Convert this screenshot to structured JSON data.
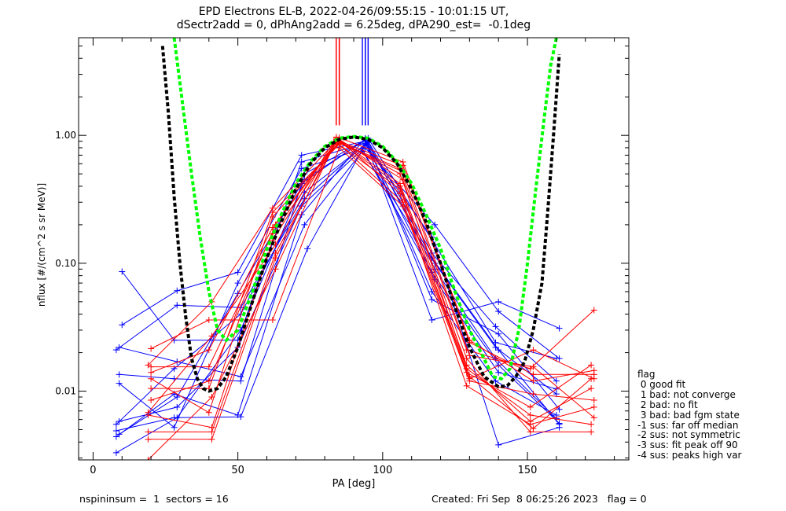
{
  "title": {
    "line1": "EPD Electrons EL-B, 2022-04-26/09:55:15 - 10:01:15 UT,",
    "line2": "dSectr2add = 0, dPhAng2add = 6.25deg, dPA290_est=  -0.1deg"
  },
  "footer": {
    "left": "nspininsum =  1  sectors = 16",
    "right": "Created: Fri Sep  8 06:25:26 2023   flag = 0"
  },
  "legend": {
    "title": "flag",
    "items": [
      " 0 good fit",
      " 1 bad: not converge",
      " 2 bad: no fit",
      " 3 bad: bad fgm state",
      "-1 sus: far off median",
      "-2 sus: not symmetric",
      "-3 sus: fit peak off 90",
      "-4 sus: peaks high var"
    ]
  },
  "colors": {
    "sector_blue": "#0000ff",
    "sector_red": "#ff0000",
    "fit_green": "#00ff00",
    "fit_black": "#000000"
  },
  "chart_data": {
    "type": "line",
    "xlabel": "PA [deg]",
    "ylabel": "nflux [#/(cm^2 s sr MeV)]",
    "xlim": [
      -5,
      185
    ],
    "ylim": [
      0.0029,
      5.8
    ],
    "ylog": true,
    "xticks": [
      0,
      50,
      100,
      150
    ],
    "yticks": [
      {
        "value": 0.01,
        "label": "0.01"
      },
      {
        "value": 0.1,
        "label": "0.10"
      },
      {
        "value": 1.0,
        "label": "1.00"
      }
    ],
    "series": [
      {
        "color": "blue",
        "pa": [
          9,
          29,
          50,
          72,
          94,
          117,
          140,
          161
        ],
        "flux": [
          0.0046,
          0.009,
          0.058,
          0.42,
          0.93,
          0.11,
          0.021,
          0.0055
        ]
      },
      {
        "color": "blue",
        "pa": [
          8,
          28,
          51,
          73,
          95,
          118,
          139,
          160
        ],
        "flux": [
          0.0055,
          0.015,
          0.04,
          0.36,
          0.88,
          0.09,
          0.018,
          0.0061
        ]
      },
      {
        "color": "blue",
        "pa": [
          10,
          29,
          50,
          72,
          94,
          117,
          140,
          161
        ],
        "flux": [
          0.033,
          0.061,
          0.085,
          0.7,
          0.9,
          0.036,
          0.05,
          0.031
        ]
      },
      {
        "color": "blue",
        "pa": [
          9,
          28,
          51,
          73,
          95,
          118,
          139,
          160
        ],
        "flux": [
          0.0135,
          0.0125,
          0.012,
          0.5,
          0.95,
          0.14,
          0.024,
          0.018
        ]
      },
      {
        "color": "blue",
        "pa": [
          8,
          28,
          51,
          74,
          94,
          117,
          140,
          161
        ],
        "flux": [
          0.0049,
          0.0062,
          0.0063,
          0.13,
          0.85,
          0.16,
          0.0038,
          0.0052
        ]
      },
      {
        "color": "blue",
        "pa": [
          9,
          29,
          50,
          72,
          93,
          118,
          140,
          160
        ],
        "flux": [
          0.0058,
          0.0075,
          0.022,
          0.28,
          0.78,
          0.075,
          0.014,
          0.0104
        ]
      },
      {
        "color": "blue",
        "pa": [
          8,
          29,
          51,
          73,
          94,
          117,
          139,
          160
        ],
        "flux": [
          0.0033,
          0.0062,
          0.03,
          0.45,
          0.92,
          0.06,
          0.012,
          0.0065
        ]
      },
      {
        "color": "blue",
        "pa": [
          9,
          28,
          50,
          72,
          94,
          118,
          140,
          161
        ],
        "flux": [
          0.0115,
          0.0052,
          0.07,
          0.55,
          0.8,
          0.2,
          0.042,
          0.018
        ]
      },
      {
        "color": "blue",
        "pa": [
          8,
          29,
          51,
          73,
          95,
          117,
          139,
          160
        ],
        "flux": [
          0.021,
          0.047,
          0.045,
          0.32,
          0.9,
          0.12,
          0.032,
          0.012
        ]
      },
      {
        "color": "blue",
        "pa": [
          10,
          28,
          50,
          72,
          94,
          117,
          140,
          161
        ],
        "flux": [
          0.086,
          0.025,
          0.025,
          0.62,
          0.87,
          0.085,
          0.016,
          0.0056
        ]
      },
      {
        "color": "blue",
        "pa": [
          9,
          29,
          51,
          73,
          93,
          118,
          139,
          160
        ],
        "flux": [
          0.022,
          0.017,
          0.013,
          0.2,
          0.75,
          0.1,
          0.022,
          0.0095
        ]
      },
      {
        "color": "blue",
        "pa": [
          8,
          28,
          50,
          72,
          94,
          117,
          140,
          161
        ],
        "flux": [
          0.0044,
          0.0095,
          0.0065,
          0.24,
          0.95,
          0.052,
          0.028,
          0.0072
        ]
      },
      {
        "color": "red",
        "pa": [
          19,
          41,
          62,
          84,
          106,
          129,
          151,
          173
        ],
        "flux": [
          0.0065,
          0.0052,
          0.15,
          0.97,
          0.35,
          0.011,
          0.0055,
          0.0075
        ]
      },
      {
        "color": "red",
        "pa": [
          20,
          40,
          63,
          85,
          107,
          130,
          152,
          172
        ],
        "flux": [
          0.0085,
          0.012,
          0.2,
          0.93,
          0.45,
          0.013,
          0.0051,
          0.0125
        ]
      },
      {
        "color": "red",
        "pa": [
          19,
          41,
          62,
          84,
          106,
          129,
          151,
          173
        ],
        "flux": [
          0.016,
          0.05,
          0.27,
          0.9,
          0.55,
          0.021,
          0.015,
          0.043
        ]
      },
      {
        "color": "red",
        "pa": [
          20,
          40,
          62,
          85,
          107,
          130,
          152,
          173
        ],
        "flux": [
          0.014,
          0.021,
          0.19,
          0.96,
          0.62,
          0.025,
          0.012,
          0.0145
        ]
      },
      {
        "color": "red",
        "pa": [
          19,
          41,
          63,
          84,
          106,
          129,
          151,
          172
        ],
        "flux": [
          0.0048,
          0.0048,
          0.12,
          0.88,
          0.38,
          0.015,
          0.0065,
          0.0055
        ]
      },
      {
        "color": "red",
        "pa": [
          20,
          40,
          62,
          85,
          107,
          130,
          152,
          173
        ],
        "flux": [
          0.0215,
          0.036,
          0.036,
          0.8,
          0.28,
          0.012,
          0.0095,
          0.0085
        ]
      },
      {
        "color": "red",
        "pa": [
          19,
          41,
          63,
          84,
          106,
          129,
          151,
          172
        ],
        "flux": [
          0.0029,
          0.009,
          0.09,
          0.92,
          0.5,
          0.018,
          0.0048,
          0.0048
        ]
      },
      {
        "color": "red",
        "pa": [
          20,
          40,
          62,
          85,
          107,
          130,
          152,
          173
        ],
        "flux": [
          0.0105,
          0.0105,
          0.25,
          0.85,
          0.3,
          0.0125,
          0.021,
          0.0125
        ]
      },
      {
        "color": "red",
        "pa": [
          19,
          41,
          63,
          84,
          106,
          129,
          151,
          172
        ],
        "flux": [
          0.0042,
          0.0042,
          0.11,
          0.95,
          0.42,
          0.016,
          0.0058,
          0.0105
        ]
      },
      {
        "color": "red",
        "pa": [
          20,
          40,
          62,
          85,
          107,
          130,
          152,
          173
        ],
        "flux": [
          0.0155,
          0.0155,
          0.17,
          0.9,
          0.58,
          0.024,
          0.0135,
          0.0135
        ]
      },
      {
        "color": "red",
        "pa": [
          19,
          41,
          63,
          84,
          106,
          129,
          151,
          172
        ],
        "flux": [
          0.0068,
          0.027,
          0.14,
          0.93,
          0.4,
          0.014,
          0.0075,
          0.016
        ]
      },
      {
        "color": "red",
        "pa": [
          20,
          40,
          62,
          85,
          107,
          130,
          152,
          173
        ],
        "flux": [
          0.0125,
          0.0068,
          0.23,
          0.87,
          0.52,
          0.019,
          0.0155,
          0.0062
        ]
      }
    ],
    "fits": [
      {
        "color": "green",
        "style": "dashed",
        "pa": [
          28,
          31,
          34,
          37,
          40,
          43,
          46,
          50,
          55,
          60,
          65,
          70,
          75,
          80,
          85,
          90,
          95,
          100,
          105,
          110,
          115,
          120,
          125,
          130,
          135,
          138,
          141,
          144,
          147,
          150,
          153,
          156,
          158,
          160
        ],
        "flux": [
          5.8,
          1.7,
          0.5,
          0.16,
          0.06,
          0.03,
          0.025,
          0.03,
          0.06,
          0.13,
          0.24,
          0.42,
          0.62,
          0.82,
          0.95,
          0.98,
          0.95,
          0.82,
          0.62,
          0.42,
          0.24,
          0.13,
          0.06,
          0.03,
          0.018,
          0.013,
          0.0125,
          0.015,
          0.03,
          0.1,
          0.4,
          1.5,
          3.5,
          5.8
        ]
      },
      {
        "color": "black",
        "style": "dashed",
        "pa": [
          24,
          26,
          28,
          30,
          32,
          34,
          36,
          38,
          40,
          43,
          46,
          50,
          55,
          60,
          65,
          70,
          75,
          80,
          85,
          90,
          95,
          100,
          105,
          110,
          115,
          120,
          125,
          130,
          135,
          140,
          143,
          146,
          149,
          152,
          155,
          157,
          159,
          161
        ],
        "flux": [
          5.0,
          1.5,
          0.33,
          0.1,
          0.038,
          0.018,
          0.0125,
          0.0105,
          0.01,
          0.0105,
          0.013,
          0.022,
          0.05,
          0.11,
          0.21,
          0.38,
          0.6,
          0.8,
          0.93,
          0.97,
          0.93,
          0.8,
          0.6,
          0.38,
          0.21,
          0.1,
          0.045,
          0.022,
          0.013,
          0.0108,
          0.011,
          0.013,
          0.017,
          0.03,
          0.07,
          0.25,
          1.0,
          4.3
        ]
      }
    ]
  }
}
